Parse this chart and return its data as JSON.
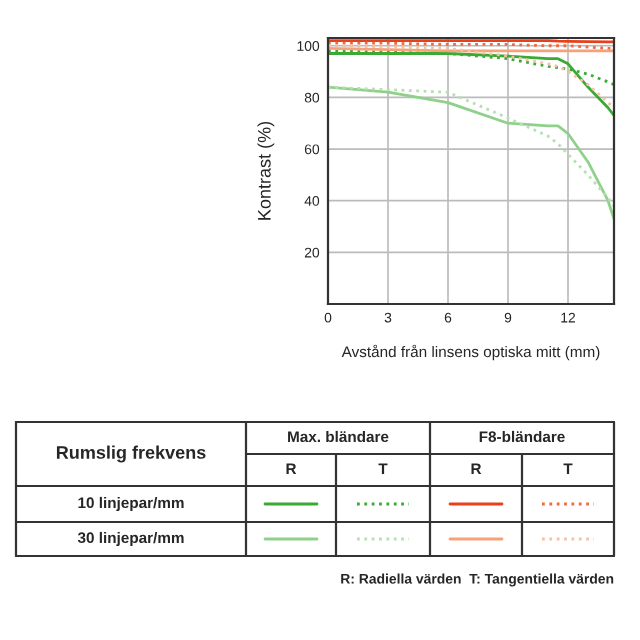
{
  "chart_data": {
    "type": "line",
    "ylabel": "Kontrast (%)",
    "xlabel": "Avstånd från linsens optiska mitt (mm)",
    "x": [
      0,
      3,
      6,
      9,
      11,
      11.5,
      12,
      13,
      14,
      14.3
    ],
    "series": [
      {
        "color": "#3aaa35",
        "line_style": "solid",
        "values": [
          97,
          97,
          97,
          96,
          95,
          95,
          93,
          84,
          76,
          73
        ]
      },
      {
        "color": "#3aaa35",
        "line_style": "dotted",
        "values": [
          98,
          97.5,
          97,
          95,
          92,
          91.5,
          91,
          89,
          86,
          85
        ]
      },
      {
        "color": "#e8401c",
        "line_style": "solid",
        "values": [
          102,
          102,
          102,
          102,
          102,
          101.8,
          101.7,
          101.6,
          101.5,
          101.5
        ]
      },
      {
        "color": "#f06a3c",
        "line_style": "dotted",
        "values": [
          101,
          101,
          100.5,
          100.5,
          100,
          100,
          100,
          99.5,
          99,
          99
        ]
      },
      {
        "color": "#8fd18a",
        "line_style": "solid",
        "values": [
          84,
          82,
          78,
          70,
          69,
          69,
          66,
          55,
          40,
          33
        ]
      },
      {
        "color": "#b5e0b0",
        "line_style": "dotted",
        "values": [
          84,
          83,
          82,
          72,
          65,
          62,
          58,
          50,
          41,
          38
        ]
      },
      {
        "color": "#f5a27a",
        "line_style": "solid",
        "values": [
          99,
          98.5,
          98,
          98,
          98,
          98,
          98,
          98,
          98,
          98
        ]
      },
      {
        "color": "#f8c0a4",
        "line_style": "dotted",
        "values": [
          100,
          99.5,
          99,
          96,
          93,
          92,
          90,
          85,
          78,
          76
        ]
      }
    ],
    "xlim": [
      0,
      14.3
    ],
    "ylim": [
      0,
      103
    ],
    "xticks": [
      0,
      3,
      6,
      9,
      12
    ],
    "yticks": [
      20,
      40,
      60,
      80,
      100
    ],
    "grid": true,
    "annotations": [
      "Rumslig frekvens",
      "Max. bländare",
      "F8-bländare",
      "R",
      "T",
      "R",
      "T",
      "10 linjepar/mm",
      "30 linjepar/mm",
      "R: Radiella värden  T: Tangentiella värden"
    ]
  }
}
